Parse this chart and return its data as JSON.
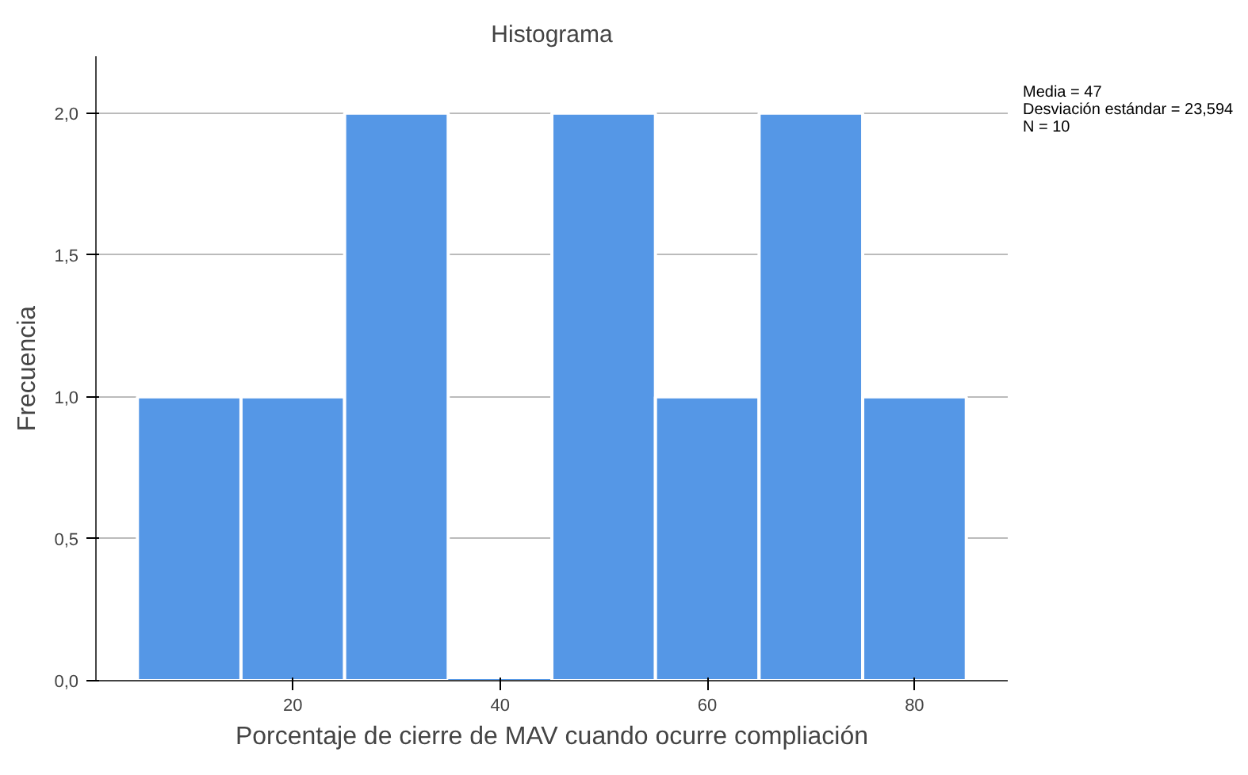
{
  "chart_data": {
    "type": "histogram",
    "title": "Histograma",
    "xlabel": "Porcentaje de cierre de MAV cuando ocurre compliación",
    "ylabel": "Frecuencia",
    "bins": [
      5,
      15,
      25,
      35,
      45,
      55,
      65,
      75,
      85
    ],
    "values": [
      1,
      1,
      2,
      0,
      2,
      1,
      2,
      1
    ],
    "color": "#5597e6",
    "xlim": [
      1,
      89
    ],
    "xticks": [
      20,
      40,
      60,
      80
    ],
    "ylim": [
      0,
      2.2
    ],
    "yticks": [
      {
        "value": 0,
        "label": "0,0"
      },
      {
        "value": 0.5,
        "label": "0,5"
      },
      {
        "value": 1,
        "label": "1,0"
      },
      {
        "value": 1.5,
        "label": "1,5"
      },
      {
        "value": 2,
        "label": "2,0"
      }
    ],
    "grid": "y",
    "annotations": [
      "Media = 47",
      "Desviación estándar = 23,594",
      "N = 10"
    ]
  }
}
